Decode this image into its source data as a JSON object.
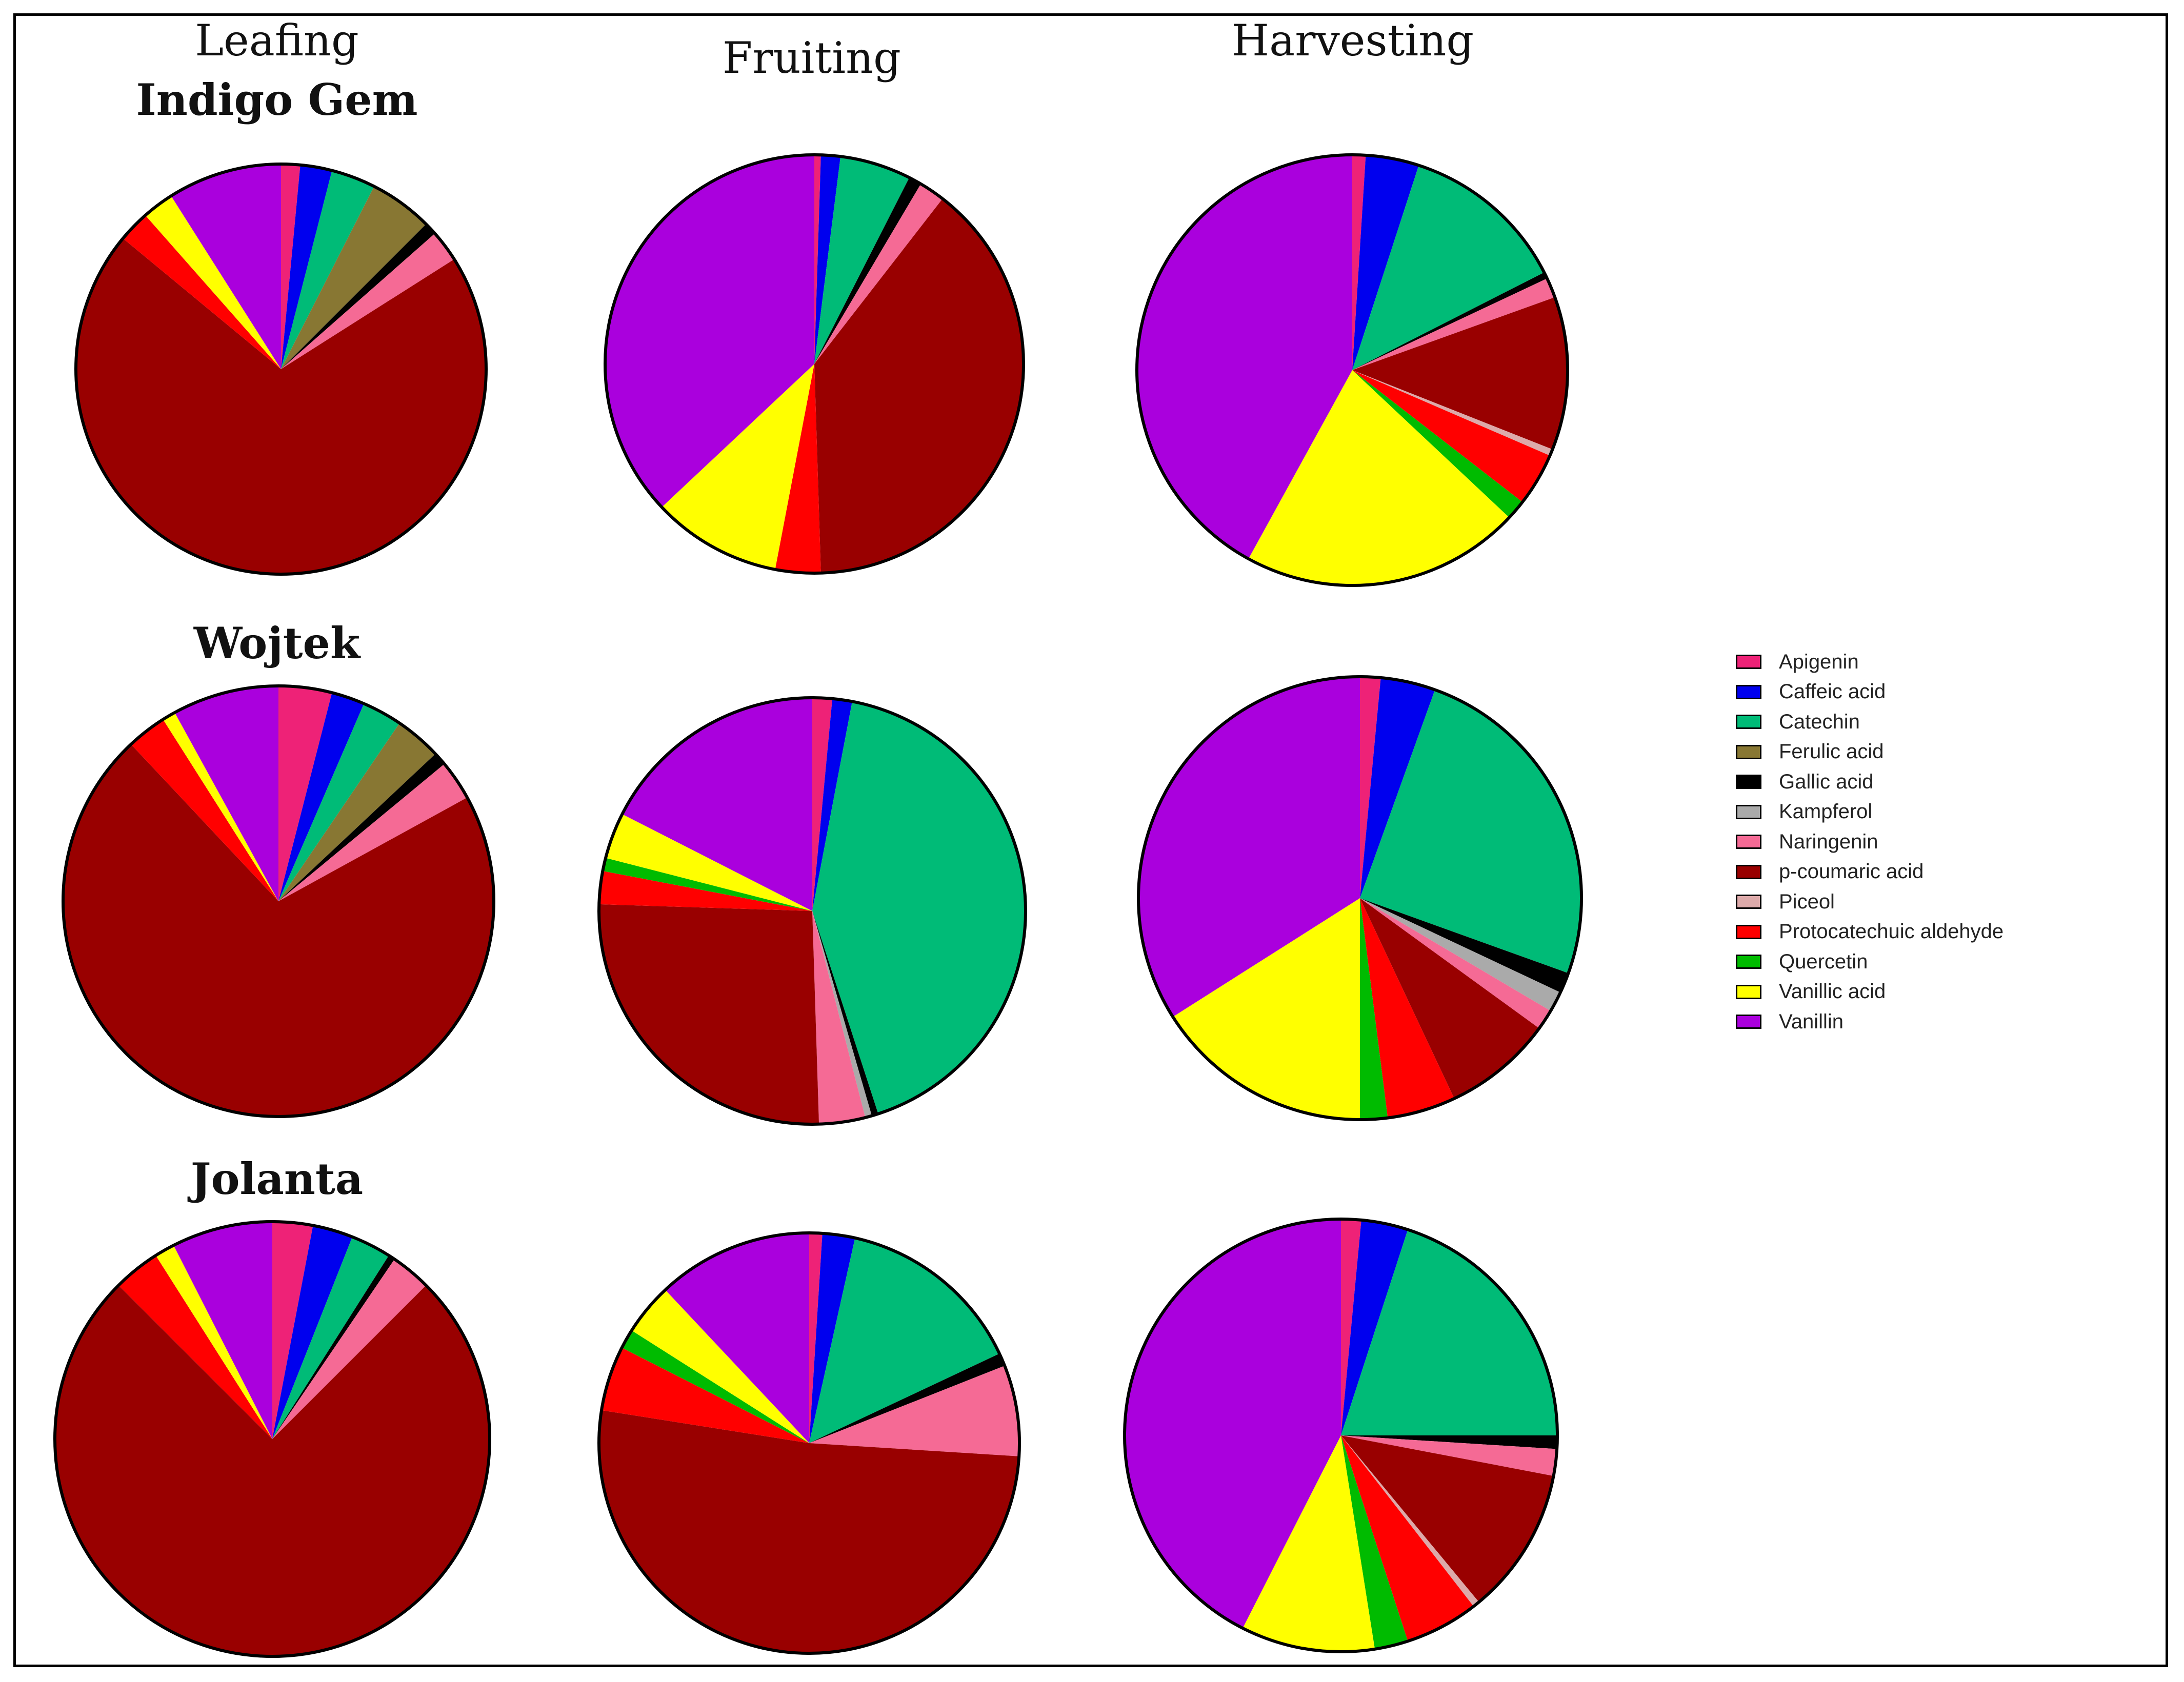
{
  "figure": {
    "stages": [
      "Leafing",
      "Fruiting",
      "Harvesting"
    ],
    "cultivars": [
      "Indigo Gem",
      "Wojtek",
      "Jolanta"
    ]
  },
  "legend": [
    {
      "label": "Apigenin",
      "color": "#ee2277"
    },
    {
      "label": "Caffeic acid",
      "color": "#0000ee"
    },
    {
      "label": "Catechin",
      "color": "#00bb77"
    },
    {
      "label": "Ferulic acid",
      "color": "#887733"
    },
    {
      "label": "Gallic acid",
      "color": "#000000"
    },
    {
      "label": "Kampferol",
      "color": "#aaaaaa"
    },
    {
      "label": "Naringenin",
      "color": "#f56a95"
    },
    {
      "label": "p-coumaric acid",
      "color": "#990000"
    },
    {
      "label": "Piceol",
      "color": "#ddaaaa"
    },
    {
      "label": "Protocatechuic aldehyde",
      "color": "#ff0000"
    },
    {
      "label": "Quercetin",
      "color": "#00bb00"
    },
    {
      "label": "Vanillic acid",
      "color": "#ffff00"
    },
    {
      "label": "Vanillin",
      "color": "#aa00dd"
    }
  ],
  "chart_data": [
    {
      "type": "pie",
      "cultivar": "Indigo Gem",
      "stage": "Leafing",
      "categories": [
        "Apigenin",
        "Caffeic acid",
        "Catechin",
        "Ferulic acid",
        "Gallic acid",
        "Kampferol",
        "Naringenin",
        "p-coumaric acid",
        "Piceol",
        "Protocatechuic aldehyde",
        "Quercetin",
        "Vanillic acid",
        "Vanillin"
      ],
      "values": [
        1.5,
        2.5,
        3.5,
        5.0,
        1.0,
        0,
        2.5,
        70.0,
        0,
        2.5,
        0,
        2.5,
        9.0
      ]
    },
    {
      "type": "pie",
      "cultivar": "Indigo Gem",
      "stage": "Fruiting",
      "categories": [
        "Apigenin",
        "Caffeic acid",
        "Catechin",
        "Ferulic acid",
        "Gallic acid",
        "Kampferol",
        "Naringenin",
        "p-coumaric acid",
        "Piceol",
        "Protocatechuic aldehyde",
        "Quercetin",
        "Vanillic acid",
        "Vanillin"
      ],
      "values": [
        0.5,
        1.5,
        5.5,
        0,
        1.0,
        0,
        2.0,
        39.0,
        0,
        3.5,
        0,
        10.0,
        37.0
      ]
    },
    {
      "type": "pie",
      "cultivar": "Indigo Gem",
      "stage": "Harvesting",
      "categories": [
        "Apigenin",
        "Caffeic acid",
        "Catechin",
        "Ferulic acid",
        "Gallic acid",
        "Kampferol",
        "Naringenin",
        "p-coumaric acid",
        "Piceol",
        "Protocatechuic aldehyde",
        "Quercetin",
        "Vanillic acid",
        "Vanillin"
      ],
      "values": [
        1.0,
        4.0,
        12.5,
        0,
        0.5,
        0,
        1.5,
        11.5,
        0.5,
        4.0,
        1.5,
        21.0,
        42.0
      ]
    },
    {
      "type": "pie",
      "cultivar": "Wojtek",
      "stage": "Leafing",
      "categories": [
        "Apigenin",
        "Caffeic acid",
        "Catechin",
        "Ferulic acid",
        "Gallic acid",
        "Kampferol",
        "Naringenin",
        "p-coumaric acid",
        "Piceol",
        "Protocatechuic aldehyde",
        "Quercetin",
        "Vanillic acid",
        "Vanillin"
      ],
      "values": [
        4.0,
        2.5,
        3.0,
        3.5,
        1.0,
        0,
        3.0,
        71.0,
        0,
        3.0,
        0,
        1.0,
        8.0
      ]
    },
    {
      "type": "pie",
      "cultivar": "Wojtek",
      "stage": "Fruiting",
      "categories": [
        "Apigenin",
        "Caffeic acid",
        "Catechin",
        "Ferulic acid",
        "Gallic acid",
        "Kampferol",
        "Naringenin",
        "p-coumaric acid",
        "Piceol",
        "Protocatechuic aldehyde",
        "Quercetin",
        "Vanillic acid",
        "Vanillin"
      ],
      "values": [
        1.5,
        1.5,
        42.0,
        0,
        0.5,
        0.5,
        3.5,
        26.0,
        0,
        2.5,
        1.0,
        3.5,
        17.5
      ]
    },
    {
      "type": "pie",
      "cultivar": "Wojtek",
      "stage": "Harvesting",
      "categories": [
        "Apigenin",
        "Caffeic acid",
        "Catechin",
        "Ferulic acid",
        "Gallic acid",
        "Kampferol",
        "Naringenin",
        "p-coumaric acid",
        "Piceol",
        "Protocatechuic aldehyde",
        "Quercetin",
        "Vanillic acid",
        "Vanillin"
      ],
      "values": [
        1.5,
        4.0,
        25.0,
        0,
        1.5,
        1.5,
        1.5,
        8.0,
        0,
        5.0,
        2.0,
        16.0,
        34.0
      ]
    },
    {
      "type": "pie",
      "cultivar": "Jolanta",
      "stage": "Leafing",
      "categories": [
        "Apigenin",
        "Caffeic acid",
        "Catechin",
        "Ferulic acid",
        "Gallic acid",
        "Kampferol",
        "Naringenin",
        "p-coumaric acid",
        "Piceol",
        "Protocatechuic aldehyde",
        "Quercetin",
        "Vanillic acid",
        "Vanillin"
      ],
      "values": [
        3.0,
        3.0,
        3.0,
        0,
        0.5,
        0,
        3.0,
        75.0,
        0,
        3.5,
        0,
        1.5,
        7.5
      ]
    },
    {
      "type": "pie",
      "cultivar": "Jolanta",
      "stage": "Fruiting",
      "categories": [
        "Apigenin",
        "Caffeic acid",
        "Catechin",
        "Ferulic acid",
        "Gallic acid",
        "Kampferol",
        "Naringenin",
        "p-coumaric acid",
        "Piceol",
        "Protocatechuic aldehyde",
        "Quercetin",
        "Vanillic acid",
        "Vanillin"
      ],
      "values": [
        1.0,
        2.5,
        14.5,
        0,
        1.0,
        0,
        7.0,
        51.5,
        0,
        5.0,
        1.5,
        4.0,
        12.0
      ]
    },
    {
      "type": "pie",
      "cultivar": "Jolanta",
      "stage": "Harvesting",
      "categories": [
        "Apigenin",
        "Caffeic acid",
        "Catechin",
        "Ferulic acid",
        "Gallic acid",
        "Kampferol",
        "Naringenin",
        "p-coumaric acid",
        "Piceol",
        "Protocatechuic aldehyde",
        "Quercetin",
        "Vanillic acid",
        "Vanillin"
      ],
      "values": [
        1.5,
        3.5,
        20.0,
        0,
        1.0,
        0,
        2.0,
        11.0,
        0.5,
        5.5,
        2.5,
        10.0,
        42.5
      ]
    }
  ]
}
